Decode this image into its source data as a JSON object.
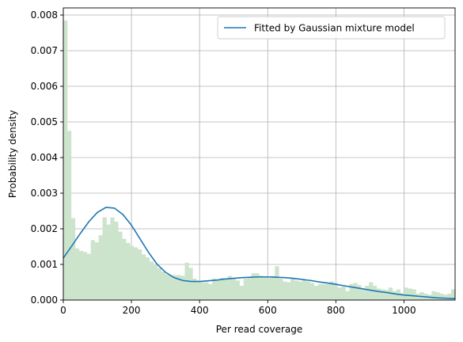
{
  "chart_data": {
    "type": "bar",
    "xlabel": "Per read coverage",
    "ylabel": "Probability density",
    "xlim": [
      0,
      1150
    ],
    "ylim": [
      0,
      0.0082
    ],
    "grid": true,
    "legend_position": "top-right",
    "x_ticks": [
      "0",
      "200",
      "400",
      "600",
      "800",
      "1000"
    ],
    "x_tick_values": [
      0,
      200,
      400,
      600,
      800,
      1000
    ],
    "y_ticks": [
      "0.000",
      "0.001",
      "0.002",
      "0.003",
      "0.004",
      "0.005",
      "0.006",
      "0.007",
      "0.008"
    ],
    "y_tick_values": [
      0,
      0.001,
      0.002,
      0.003,
      0.004,
      0.005,
      0.006,
      0.007,
      0.008
    ],
    "histogram": {
      "bin_width": 11.5,
      "color": "#cde4cc",
      "densities": [
        0.00785,
        0.00475,
        0.0023,
        0.00145,
        0.00138,
        0.00135,
        0.0013,
        0.00168,
        0.00162,
        0.00182,
        0.00232,
        0.00212,
        0.00232,
        0.0022,
        0.00192,
        0.00172,
        0.0016,
        0.00152,
        0.00148,
        0.00142,
        0.00128,
        0.0012,
        0.00108,
        0.00098,
        0.0009,
        0.0008,
        0.00072,
        0.0007,
        0.0007,
        0.0007,
        0.00068,
        0.00105,
        0.0009,
        0.0006,
        0.00055,
        0.0005,
        0.0005,
        0.00045,
        0.0006,
        0.00055,
        0.00062,
        0.00058,
        0.00068,
        0.0006,
        0.00055,
        0.0004,
        0.0006,
        0.00062,
        0.00075,
        0.00075,
        0.00068,
        0.00065,
        0.00062,
        0.00068,
        0.00095,
        0.0006,
        0.00052,
        0.0005,
        0.0006,
        0.00055,
        0.00052,
        0.00058,
        0.00052,
        0.00048,
        0.0004,
        0.00045,
        0.00045,
        0.00045,
        0.00052,
        0.00048,
        0.00035,
        0.00038,
        0.00025,
        0.00045,
        0.00048,
        0.00042,
        0.00032,
        0.0004,
        0.0005,
        0.0004,
        0.00032,
        0.0003,
        0.00028,
        0.00035,
        0.00025,
        0.0003,
        0.0002,
        0.00035,
        0.00032,
        0.0003,
        0.00018,
        0.00022,
        0.00018,
        0.00015,
        0.00025,
        0.00022,
        0.00018,
        0.00015,
        0.00018,
        0.0003
      ]
    },
    "series": [
      {
        "name": "Fitted by Gaussian mixture model",
        "color": "#1f77b4",
        "x": [
          0,
          25,
          50,
          75,
          100,
          125,
          150,
          175,
          200,
          225,
          250,
          275,
          300,
          325,
          350,
          375,
          400,
          425,
          450,
          475,
          500,
          525,
          550,
          575,
          600,
          625,
          650,
          675,
          700,
          725,
          750,
          775,
          800,
          825,
          850,
          875,
          900,
          925,
          950,
          975,
          1000,
          1025,
          1050,
          1075,
          1100,
          1125,
          1150
        ],
        "y": [
          0.00118,
          0.00152,
          0.00187,
          0.0022,
          0.00246,
          0.0026,
          0.00258,
          0.0024,
          0.0021,
          0.00172,
          0.00134,
          0.00101,
          0.00078,
          0.00063,
          0.00055,
          0.00052,
          0.00052,
          0.00054,
          0.00056,
          0.00059,
          0.00061,
          0.00063,
          0.00064,
          0.00065,
          0.00065,
          0.00064,
          0.00063,
          0.00061,
          0.00058,
          0.00055,
          0.00051,
          0.00048,
          0.00044,
          0.0004,
          0.00036,
          0.00032,
          0.00028,
          0.00024,
          0.00021,
          0.00017,
          0.00014,
          0.00012,
          0.0001,
          8e-05,
          6e-05,
          5e-05,
          4e-05
        ]
      }
    ]
  }
}
